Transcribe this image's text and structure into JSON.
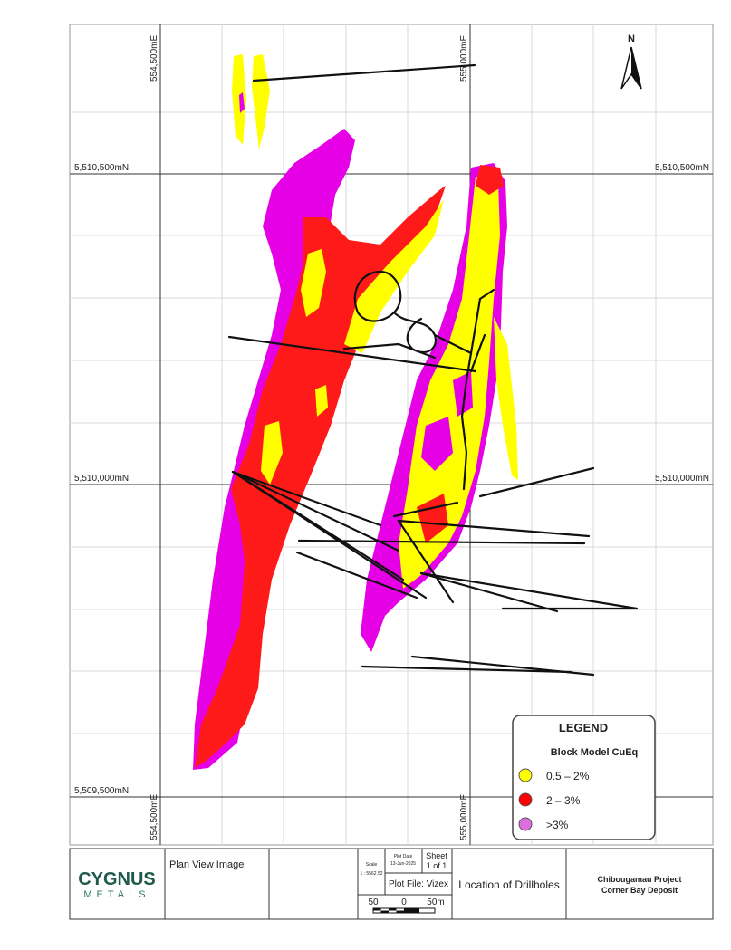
{
  "map": {
    "north": "N",
    "grid_labels": {
      "top_west": "554,500mE",
      "top_east": "555,000mE",
      "north_left": "5,510,500mN",
      "north_right": "5,510,500mN",
      "mid_left": "5,510,000mN",
      "mid_right": "5,510,000mN",
      "south_left": "5,509,500mN",
      "bottom_west": "554,500mE",
      "bottom_east": "555,000mE"
    }
  },
  "legend": {
    "title": "LEGEND",
    "subtitle": "Block Model CuEq",
    "items": [
      {
        "label": "0.5 – 2%",
        "color": "#ffff00"
      },
      {
        "label": "2 – 3%",
        "color": "#ff0000"
      },
      {
        "label": ">3%",
        "color": "#dd6ee0"
      }
    ]
  },
  "title_block": {
    "company": "CYGNUS",
    "company_sub": "METALS",
    "description": "Plan View Image",
    "scale_label": "Scale",
    "scale": "1 : 5562.52",
    "plot_date_label": "Plot Date",
    "plot_date": "13-Jun-2025",
    "sheet_label": "Sheet",
    "sheet": "1 of 1",
    "plot_file": "Plot File: Vizex",
    "scale_bar": [
      "50",
      "0",
      "50m"
    ],
    "drawing_title": "Location of Drillholes",
    "project": "Chibougamau Project",
    "deposit": "Corner Bay Deposit"
  }
}
